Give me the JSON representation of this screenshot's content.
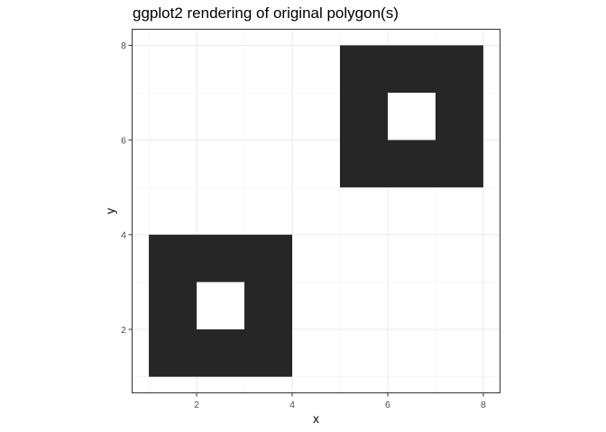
{
  "chart_data": {
    "type": "polygon",
    "title": "ggplot2 rendering of original polygon(s)",
    "xlabel": "x",
    "ylabel": "y",
    "xlim": [
      0.64,
      8.36
    ],
    "ylim": [
      0.65,
      8.35
    ],
    "x_ticks": [
      2,
      4,
      6,
      8
    ],
    "y_ticks": [
      2,
      4,
      6,
      8
    ],
    "x_minor": [
      1,
      3,
      5,
      7
    ],
    "y_minor": [
      1,
      3,
      5,
      7
    ],
    "grid": true,
    "fill_color": "#262626",
    "hole_color": "#ffffff",
    "polygons": [
      {
        "outer": [
          [
            1,
            1
          ],
          [
            4,
            1
          ],
          [
            4,
            4
          ],
          [
            1,
            4
          ]
        ],
        "hole": [
          [
            2,
            2
          ],
          [
            3,
            2
          ],
          [
            3,
            3
          ],
          [
            2,
            3
          ]
        ]
      },
      {
        "outer": [
          [
            5,
            5
          ],
          [
            8,
            5
          ],
          [
            8,
            8
          ],
          [
            5,
            8
          ]
        ],
        "hole": [
          [
            6,
            6
          ],
          [
            7,
            6
          ],
          [
            7,
            7
          ],
          [
            6,
            7
          ]
        ]
      }
    ]
  }
}
